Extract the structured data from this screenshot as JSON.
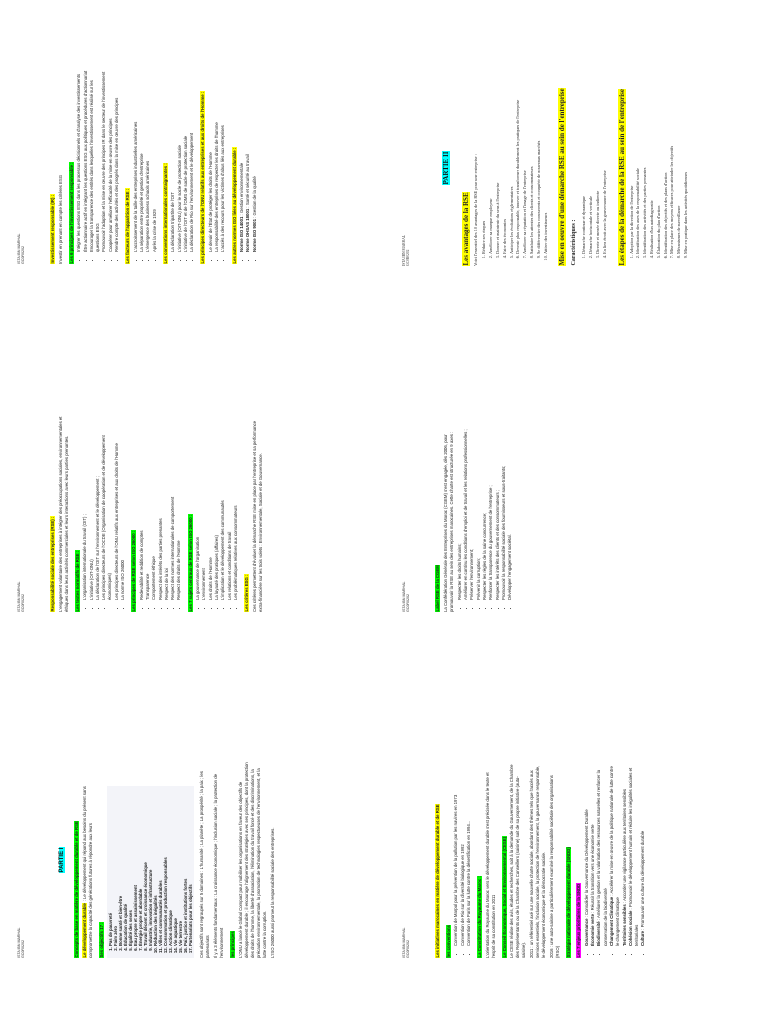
{
  "colors": {
    "yellow": "#ffff00",
    "green": "#00ff00",
    "cyan": "#00ffff",
    "magenta": "#ff00ff"
  },
  "pages": [
    {
      "header": [
        "ISTA IBN MARHAL",
        "GC0R0202"
      ],
      "blocks": [
        {
          "type": "h",
          "hl": "yellow",
          "text": "Investissement responsable (IR) :"
        },
        {
          "type": "p",
          "text": "Investir en prenant en compte les critères ESG"
        },
        {
          "type": "h",
          "hl": "green",
          "text": "Les 6 principes de l'investissement responsable :"
        },
        {
          "type": "ul",
          "items": [
            "Intégrer les questions ESG dans les processus décisionnels et d'analyse des investissements",
            "Être actionnaire actif en intégrant les questions ESG aux politiques et procédures d'actionnariat",
            "Encourager la transparence des entités dans lesquelles l'investissement est réalisé sur les questions ESG",
            "Promouvoir l'adoption et la mise en œuvre des principes IR dans le secteur de l'investissement",
            "Coopérer pour améliorer l'efficacité de la mise en œuvre des principes",
            "Rendre compte des activités et des progrès dans la mise en œuvre des principes"
          ]
        },
        {
          "type": "h",
          "hl": "yellow",
          "text": "Les facteurs de l'apparition de RSE :"
        },
        {
          "type": "ul",
          "items": [
            "L'accroissement de la taille des entreprises industrielles américaines",
            "La séparation entre propriété et gestion d'entreprise",
            "L'émergence des business schools américaines",
            "Après la crise de 1929"
          ]
        },
        {
          "type": "h",
          "hl": "yellow",
          "text": "Les conventions internationales contraignantes :"
        },
        {
          "type": "ul",
          "items": [
            "La déclaration tripartite de l'OIT",
            "L'initiative (OIT-ONU) pour le socle de protection sociale",
            "L'initiative de l'OIT et de l'OMS de socle de protection sociale",
            "La déclaration de Rio sur l'environnement et le développement"
          ]
        },
        {
          "type": "h",
          "hl": "yellow",
          "text": "Les principes directeurs de l'ONU relatifs aux entreprises et aux droits de l'Homme :"
        },
        {
          "type": "ul",
          "items": [
            "Le devoir de l'État de protéger les droits de l'Homme",
            "La responsabilité des entreprises de respecter les droits de l'homme",
            "L'accès à des recours pour les victimes d'abus liés aux entreprises"
          ]
        },
        {
          "type": "h",
          "hl": "yellow",
          "text": "Les autres normes ISO liées au développement durable :"
        },
        {
          "type": "ul",
          "items": [
            {
              "lead": "Norme ISO 14001",
              "text": " : Gestion environnementale"
            },
            {
              "lead": "Norme OHSAS 18001",
              "text": " : Santé et sécurité au travail"
            },
            {
              "lead": "Norme ISO 9001",
              "text": " : Gestion de la qualité"
            }
          ]
        }
      ]
    },
    {
      "header": [
        "ISTA IBN MARHAL",
        "GC0R0202"
      ],
      "blocks": [
        {
          "type": "h",
          "hl": "yellow",
          "text": "Responsabilité sociale des entreprises (RSE) :"
        },
        {
          "type": "p",
          "text": "L'engagement volontaire des entreprises à intégrer des préoccupations sociales, environnementales et éthiques dans leurs activités commerciales et leurs interactions avec leurs parties prenantes."
        },
        {
          "type": "h",
          "hl": "green",
          "text": "Les textes normatifs de RSE :"
        },
        {
          "type": "ul",
          "items": [
            "L'organisation internationale du travail (OIT) ;",
            "L'initiative (OIT-ONU)",
            "La déclaration de l'OIT sur l'environnement et le développement ;",
            "Les principes directeurs de l'OCDE (Organisation de coopération et de développement économiques)",
            "Les principes directeurs de l'ONU relatifs aux entreprises et aux droits de l'Homme",
            "La norme ISO 26000"
          ]
        },
        {
          "type": "h",
          "hl": "green",
          "text": "Les principes de RSE selon ISO 26000 :"
        },
        {
          "type": "ul",
          "items": [
            "Redevabilité et reddition de comptes",
            "Transparence",
            "Comportement éthique",
            "Respect des intérêts des parties prenantes",
            "Respect de la loi",
            "Respect des normes internationales de comportement",
            "Respect des droits de l'Homme"
          ]
        },
        {
          "type": "h",
          "hl": "green",
          "text": "Les 7 sujets centraux de RSE selon ISO 26000 :"
        },
        {
          "type": "ul",
          "items": [
            "La gouvernance de l'organisation",
            "L'environnement",
            "Les droits de l'Homme",
            "La loyauté des pratiques (affaires)",
            "L'implication et le développement des communautés",
            "Les relations et conditions de travail",
            "Les problématiques relatives aux consommateurs"
          ]
        },
        {
          "type": "h",
          "hl": "yellow",
          "text": "Les critères ESG :"
        },
        {
          "type": "p",
          "text": "Ces critères permettent d'évaluer la démarche RSE mise en place par l'entreprise et sa performance extra-financière sur les trois volets : Environnementale, Sociale et de Gouvernance."
        }
      ]
    },
    {
      "header": [
        "ISTA IBN MARHAL",
        "GC0R0202"
      ],
      "blocks": [
        {
          "type": "part",
          "text": "PARTIE I"
        },
        {
          "type": "h",
          "hl": "green",
          "text": "Concepts de base en matière de développement durable et de RSE"
        },
        {
          "type": "p",
          "lead": "Le développement durable",
          "hl": "yellow",
          "text": " : Le développement qui répond aux besoins du présent sans compromettre la capacité des générations futures à répondre aux leurs"
        },
        {
          "type": "h",
          "hl": "green",
          "text": "Ses objectifs 17 :"
        },
        {
          "type": "ol",
          "tight": true,
          "items": [
            "Pas de pauvreté",
            "Faim zéro",
            "Bonne santé et bien-être",
            "Éducation de qualité",
            "Égalité des sexes",
            "Eau propre et assainissement",
            "Énergie propre et abordable",
            "Travail décent et croissance économique",
            "Industrie, innovation et infrastructure",
            "Réduction des inégalités",
            "Villes et communautés durables",
            "Consommation et production responsables",
            "Action climatique",
            "Vie aquatique",
            "Vie terrestre",
            "Paix, justice et institutions fortes",
            "Partenariats pour les objectifs"
          ]
        },
        {
          "type": "p",
          "text": "Ces objectifs sont regroupés sur 5 domaines : L'humanité ; La planète ; La prospérité ; la paix ; les partenariats"
        },
        {
          "type": "p",
          "text": "Il y a 3 éléments fondamentaux : La croissance économique ; l'inclusion sociale ; la protection de l'environnement"
        },
        {
          "type": "h",
          "hl": "green",
          "text": "les principes"
        },
        {
          "type": "p",
          "text": "L'ONU a lancé le Global Compact pour mobiliser les organisations en faveur des objectifs de développement durable ; il encourage l'alignement des stratégies avec ses principes, dont la protection des droits de l'homme, la liberté d'association, l'élimination du travail forcé et des discriminations, la précaution environnementale, la promotion de technologies respectueuses de l'environnement, et la lutte contre la corruption."
        },
        {
          "type": "p",
          "text": "L'ISO 26000 aussi promeut la responsabilité sociale des entreprises."
        }
      ]
    },
    {
      "header": [
        "ISTA IBN MARHAL",
        "GC0R0202"
      ],
      "blocks": [
        {
          "type": "part",
          "text": "PARTIE II"
        },
        {
          "type": "h",
          "hl": "yellow",
          "variant": "big",
          "text": "Les avantages de la RSE"
        },
        {
          "type": "p",
          "text": "Voici l'essentiel des 10 avantages de la RSE pour une entreprise :"
        },
        {
          "type": "ol",
          "items": [
            "Réduire ses risques",
            "Améliorer sa marque employeur",
            "Donner et maintenir du sens à l'entreprise",
            "Faire des économies",
            "Anticiper les évolutions réglementaires",
            "Devenir plus responsable, innover et transformer durablement les pratiques de l'entreprise",
            "Améliorer sa réputation et l'image de l'entreprise",
            "Satisfaire les attentes des clients et consommateurs",
            "Se différencier des concurrents et conquérir de nouveaux marchés",
            "Attirer des investisseurs"
          ]
        },
        {
          "type": "h",
          "hl": "yellow",
          "variant": "big",
          "text": "Mise en oeuvre d'une démarche RSE au sein de l'entreprise"
        },
        {
          "type": "h",
          "variant": "plain",
          "text": "Caractéristiques :"
        },
        {
          "type": "ol",
          "items": [
            "Démarche continue et dynamique",
            "Démarche horizontale et verticale",
            "Directe et menée directe ou indirecte",
            "En lien étroit avec la gouvernance de l'entreprise"
          ]
        },
        {
          "type": "h",
          "hl": "yellow",
          "variant": "big",
          "text": "Les étapes de la démarche de la RSE au sein de l'entreprise"
        },
        {
          "type": "ol",
          "items": [
            "Adoption par la direction de l'entreprise",
            "Identification des axes de la responsabilité sociale",
            "Identification des activités et des parties prenantes",
            "Réalisation d'un autodiagnostic",
            "Élaboration du plan d'action",
            "Identification des objectifs et des plans d'action",
            "Mise en place des moyens efficaces pour atteindre les objectifs",
            "Mécanismes de surveillance",
            "Mise en pratique dans les activités quotidiennes"
          ]
        }
      ]
    },
    {
      "header": [
        "ISTA IBN MARHAL",
        "GC0R0202"
      ],
      "blocks": [
        {
          "type": "h",
          "hl": "green",
          "text": "Label RSE de la CGEM"
        },
        {
          "type": "p",
          "text": "La Confédération Générale des Entreprises du Maroc (CGEM) s'est engagée, dès 2006, pour promouvoir la RSE au sein des entreprises marocaines. Cette charte est structurée en 9 axes :"
        },
        {
          "type": "ul",
          "items": [
            "Respecter les droits humains;",
            "Améliorer en continu les conditions d'emploi et de travail et les relations professionnelles ;",
            "Préserver l'environnement;",
            "Prévenir la corruption;",
            "Respecter les règles de la saine concurrence;",
            "Renforcer la transparence du gouvernement de l'entreprise ;",
            "Respecter les intérêts des clients et des consommateurs ;",
            "Promouvoir la responsabilité sociale des fournisseurs et sous-traitants;",
            "Développer l'engagement sociétal."
          ]
        }
      ]
    },
    {
      "header": [
        "ISTA IBN MARHAL",
        "GC0R0202"
      ],
      "blocks": [
        {
          "type": "h",
          "hl": "yellow",
          "text": "Les initiatives marocaines en matière de développement durable et de RSE"
        },
        {
          "type": "h",
          "hl": "green",
          "text": "les conventions"
        },
        {
          "type": "ul",
          "items": [
            "Convention de Marpol pour la prévention de la pollution par les navires en 1973",
            "Convention de Rio sur la diversité biologique en 1992",
            "Convention de Paris sur la lutte contre la désertification en 1994..."
          ]
        },
        {
          "type": "h",
          "hl": "green",
          "text": "La Constitution du Royaume du Maroc :"
        },
        {
          "type": "p",
          "text": "L'orientation du Royaume du Maroc vers le développement durable s'est précisée dans le texte et l'esprit de sa constitution en 2011"
        },
        {
          "type": "h",
          "hl": "green",
          "text": "Le Conseil Économique, Social et Environnemental (CESE)"
        },
        {
          "type": "p",
          "text": "Le CESE réalise des avis, études et recherches, soit à la demande du Gouvernement, de la Chambre des Représentants ou de la Chambre des Conseillers (saisine) soit de sa propre initiative (auto-saisine)."
        },
        {
          "type": "p",
          "text": "2011 : un référentiel axé sur une nouvelle charte sociale, abordant des thèmes tels que l'accès aux services essentiels, l'inclusion sociale, la protection de l'environnement, la gouvernance responsable, le développement économique et la démocratie sociale."
        },
        {
          "type": "p",
          "text": "2016 : une auto-saisine a particulièrement examiné la responsabilité sociétale des organisations (RSO)"
        },
        {
          "type": "h",
          "hl": "green",
          "text": "Stratégie nationale de développement durable (SNDD)"
        },
        {
          "type": "h",
          "hl": "magenta",
          "text": "Les 7 enjeux prioritaires de la SNDD"
        },
        {
          "type": "ul",
          "items": [
            {
              "lead": "Gouvernance",
              "text": " : Consolider la Gouvernance du Développement Durable"
            },
            {
              "lead": "Économie verte",
              "text": " : Réussir la transition vers une économie verte"
            },
            {
              "lead": "Biodiversité",
              "text": " : Améliorer la gestion et la valorisation des ressources naturelles et renforcer la conservation de la biodiversité"
            },
            {
              "lead": "Changement Climatique",
              "text": " : Accélérer la mise en œuvre de la politique nationale de lutte contre le changement climatique"
            },
            {
              "lead": "Territoires sensibles",
              "text": " : Accorder une vigilance particulière aux territoires sensibles"
            },
            {
              "lead": "Cohésion sociale",
              "text": " : Promouvoir le développement humain et réduire les inégalités sociales et territoriales"
            },
            {
              "lead": "Culture",
              "text": " : Promouvoir une culture du développement durable"
            }
          ]
        }
      ]
    }
  ]
}
